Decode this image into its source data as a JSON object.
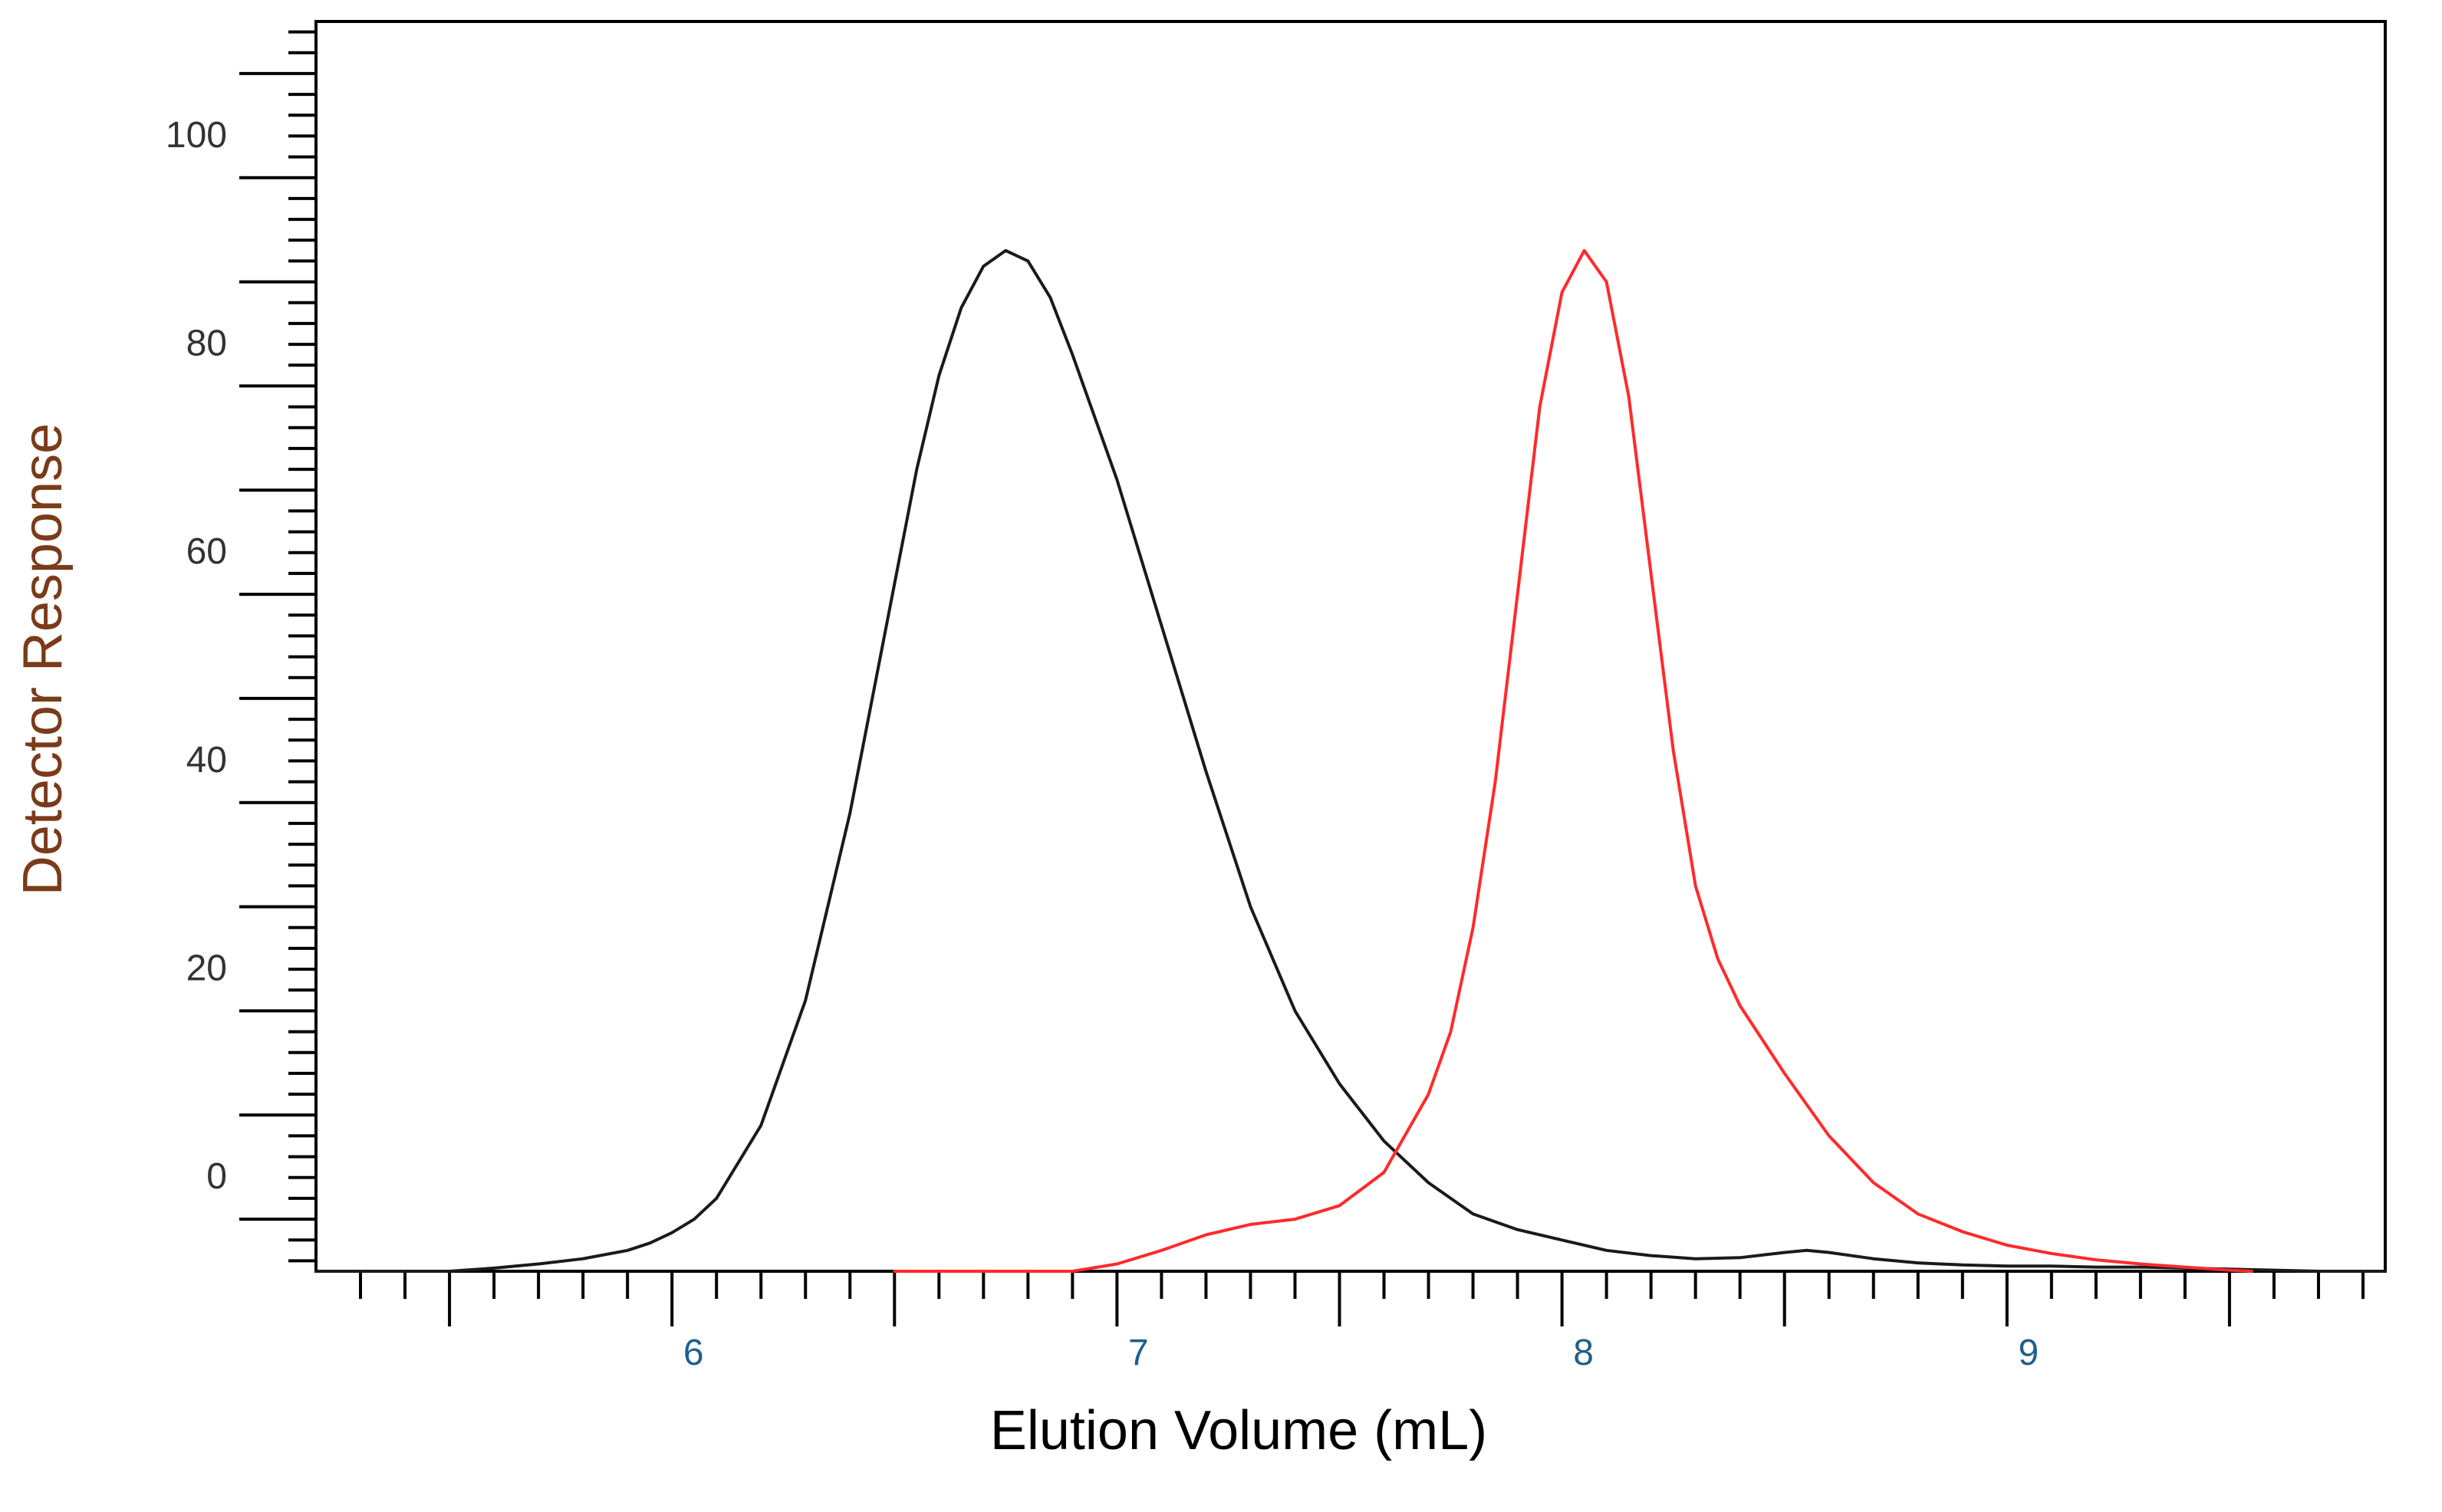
{
  "chart_data": {
    "type": "line",
    "title": "",
    "xlabel": "Elution Volume (mL)",
    "ylabel": "Detector Response",
    "xlim": [
      5.2,
      9.85
    ],
    "ylim": [
      -5,
      115
    ],
    "x_ticks": [
      6,
      7,
      8,
      9
    ],
    "x_tick_labels": [
      "6",
      "7",
      "8",
      "9"
    ],
    "y_ticks": [
      0,
      20,
      40,
      60,
      80,
      100
    ],
    "y_tick_labels": [
      "0",
      "20",
      "40",
      "60",
      "80",
      "100"
    ],
    "grid": false,
    "legend": "none",
    "colors": {
      "x_tick_labels": "#1f5f8b",
      "ylabel": "#7a3b1a",
      "y_tick_labels": "#333333",
      "xlabel": "#000000",
      "axes": "#000000"
    },
    "series": [
      {
        "color": "#1a1a1a",
        "x": [
          5.2,
          5.5,
          5.6,
          5.7,
          5.8,
          5.9,
          5.95,
          6.0,
          6.05,
          6.1,
          6.2,
          6.3,
          6.4,
          6.5,
          6.55,
          6.6,
          6.65,
          6.7,
          6.75,
          6.8,
          6.85,
          6.9,
          7.0,
          7.1,
          7.2,
          7.3,
          7.4,
          7.5,
          7.6,
          7.7,
          7.8,
          7.9,
          8.0,
          8.1,
          8.2,
          8.3,
          8.4,
          8.5,
          8.55,
          8.6,
          8.7,
          8.8,
          8.9,
          9.0,
          9.1,
          9.2,
          9.3,
          9.4,
          9.5,
          9.6,
          9.7,
          9.8,
          9.85
        ],
        "y": [
          -5,
          -5,
          -4.7,
          -4.3,
          -3.8,
          -3,
          -2.3,
          -1.3,
          0,
          2,
          9,
          21,
          39,
          61,
          72,
          81,
          87.5,
          91.5,
          93,
          92,
          88.5,
          83,
          71,
          57,
          43,
          30,
          20,
          13,
          7.5,
          3.5,
          0.5,
          -1,
          -2,
          -3,
          -3.5,
          -3.8,
          -3.7,
          -3.2,
          -3,
          -3.2,
          -3.8,
          -4.2,
          -4.4,
          -4.5,
          -4.5,
          -4.6,
          -4.6,
          -4.7,
          -4.8,
          -4.9,
          -5,
          -5,
          -5
        ]
      },
      {
        "color": "#ff2a2a",
        "x": [
          6.5,
          6.9,
          7.0,
          7.1,
          7.2,
          7.3,
          7.4,
          7.5,
          7.6,
          7.7,
          7.75,
          7.8,
          7.85,
          7.9,
          7.95,
          8.0,
          8.05,
          8.1,
          8.15,
          8.2,
          8.25,
          8.3,
          8.35,
          8.4,
          8.5,
          8.6,
          8.7,
          8.8,
          8.9,
          9.0,
          9.1,
          9.2,
          9.3,
          9.4,
          9.5,
          9.55
        ],
        "y": [
          -5,
          -5,
          -4.3,
          -3,
          -1.5,
          -0.5,
          0,
          1.3,
          4.5,
          12,
          18,
          28,
          42,
          60,
          78,
          89,
          93,
          90,
          79,
          62,
          45,
          32,
          25,
          20.5,
          14,
          8,
          3.5,
          0.5,
          -1.2,
          -2.5,
          -3.3,
          -3.9,
          -4.3,
          -4.6,
          -4.9,
          -5
        ]
      }
    ]
  }
}
